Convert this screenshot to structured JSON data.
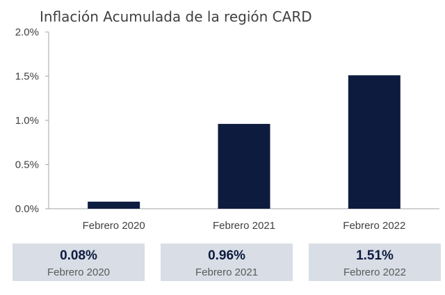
{
  "chart_data": {
    "type": "bar",
    "title": "Inflación Acumulada de la región CARD",
    "categories": [
      "Febrero 2020",
      "Febrero 2021",
      "Febrero 2022"
    ],
    "values": [
      0.08,
      0.96,
      1.51
    ],
    "ylim": [
      0,
      2.0
    ],
    "yticks": [
      "0.0%",
      "0.5%",
      "1.0%",
      "1.5%",
      "2.0%"
    ],
    "ytick_values": [
      0,
      0.5,
      1.0,
      1.5,
      2.0
    ],
    "grid": false,
    "bar_color": "#0d1b3e"
  },
  "summary_cards": [
    {
      "value": "0.08%",
      "label": "Febrero 2020"
    },
    {
      "value": "0.96%",
      "label": "Febrero 2021"
    },
    {
      "value": "1.51%",
      "label": "Febrero 2022"
    }
  ],
  "colors": {
    "bar": "#0d1b3e",
    "card_background": "#d8dde6",
    "axis": "#a6a6a6"
  }
}
